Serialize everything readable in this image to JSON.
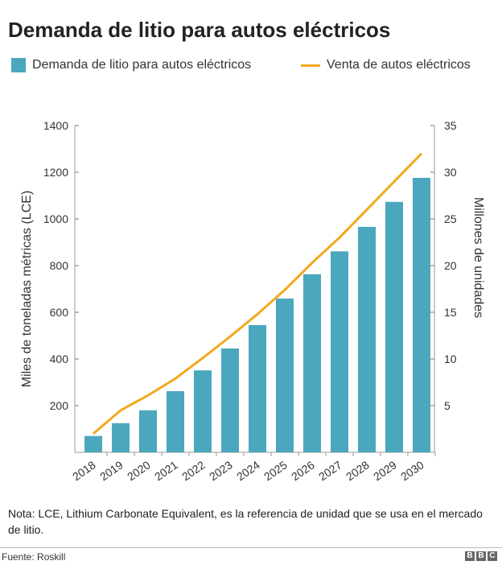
{
  "chart_data": {
    "type": "bar+line",
    "title": "Demanda de litio para autos eléctricos",
    "categories": [
      "2018",
      "2019",
      "2020",
      "2021",
      "2022",
      "2023",
      "2024",
      "2025",
      "2026",
      "2027",
      "2028",
      "2029",
      "2030"
    ],
    "series": [
      {
        "name": "Demanda de litio para autos eléctricos",
        "type": "bar",
        "axis": "left",
        "color": "#4aa7bd",
        "values": [
          70,
          125,
          180,
          262,
          351,
          445,
          545,
          659,
          763,
          861,
          966,
          1073,
          1176
        ]
      },
      {
        "name": "Venta de autos eléctricos",
        "type": "line",
        "axis": "right",
        "color": "#f2a81d",
        "values": [
          2.0,
          4.5,
          6.1,
          7.9,
          10.1,
          12.4,
          14.8,
          17.4,
          20.3,
          23.0,
          26.0,
          29.0,
          32.0
        ]
      }
    ],
    "ylabel_left": "Miles de toneladas métricas (LCE)",
    "ylabel_right": "Millones de unidades",
    "ylim_left": [
      0,
      1400
    ],
    "ylim_right": [
      0,
      35
    ],
    "yticks_left": [
      "200",
      "400",
      "600",
      "800",
      "1000",
      "1200",
      "1400"
    ],
    "yticks_right": [
      "5",
      "10",
      "15",
      "20",
      "25",
      "30",
      "35"
    ],
    "grid": false,
    "legend": "top"
  },
  "note": "Nota: LCE, Lithium Carbonate Equivalent, es la referencia de unidad que se usa en el mercado de litio.",
  "source": "Fuente: Roskill",
  "logo": [
    "B",
    "B",
    "C"
  ]
}
